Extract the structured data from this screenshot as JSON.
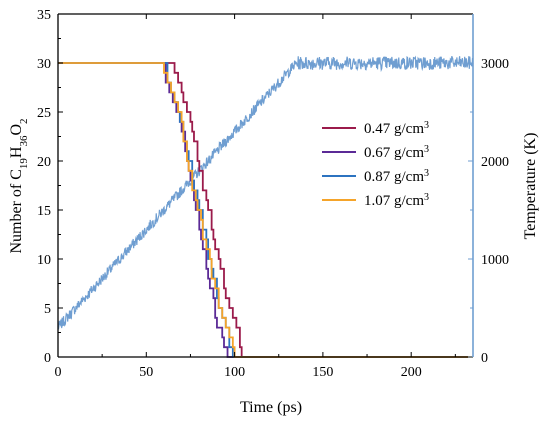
{
  "chart_data": {
    "type": "line",
    "xlabel": "Time (ps)",
    "ylabel_left": {
      "base": "Number of C",
      "s1": "19",
      "m1": "H",
      "s2": "36",
      "m2": "O",
      "s3": "2"
    },
    "ylabel_right": "Temperature (K)",
    "xlim": [
      0,
      235
    ],
    "ylim_left": [
      0,
      35
    ],
    "ylim_right": [
      0,
      3500
    ],
    "x_ticks": [
      0,
      50,
      100,
      150,
      200
    ],
    "y_ticks_left": [
      0,
      5,
      10,
      15,
      20,
      25,
      30,
      35
    ],
    "y_ticks_right": [
      0,
      1000,
      2000,
      3000
    ],
    "right_axis_color": "#6f9ed1",
    "grid": false,
    "legend_position": "center-right",
    "series": [
      {
        "name": "0.47 g/cm",
        "unit_sup": "3",
        "axis": "left",
        "color": "#9b1b4b",
        "x": [
          0,
          65,
          66,
          68,
          70,
          71,
          73,
          75,
          76,
          77,
          79,
          80,
          82,
          84,
          85,
          87,
          88,
          89,
          91,
          92,
          94,
          95,
          97,
          99,
          101,
          103,
          104,
          235
        ],
        "y": [
          30,
          30,
          29,
          28,
          27,
          26,
          25,
          24,
          23,
          22,
          20,
          19,
          17,
          16,
          15,
          13,
          12,
          11,
          10,
          9,
          7,
          6,
          5,
          4,
          3,
          1,
          0,
          0
        ]
      },
      {
        "name": "0.67 g/cm",
        "unit_sup": "3",
        "axis": "left",
        "color": "#5b2a96",
        "x": [
          0,
          57,
          61,
          63,
          65,
          67,
          69,
          70,
          72,
          73,
          74,
          75,
          77,
          78,
          80,
          81,
          82,
          84,
          85,
          86,
          88,
          89,
          90,
          92,
          93,
          94,
          96,
          235
        ],
        "y": [
          30,
          30,
          28,
          27,
          26,
          25,
          24,
          23,
          21,
          20,
          19,
          18,
          16,
          15,
          13,
          12,
          11,
          9,
          8,
          7,
          6,
          4,
          3,
          3,
          2,
          1,
          0,
          0
        ]
      },
      {
        "name": "0.87 g/cm",
        "unit_sup": "3",
        "axis": "left",
        "color": "#2c73c0",
        "x": [
          0,
          59,
          62,
          64,
          66,
          68,
          69,
          71,
          73,
          74,
          76,
          77,
          79,
          80,
          82,
          84,
          85,
          87,
          88,
          90,
          91,
          93,
          95,
          97,
          99,
          235
        ],
        "y": [
          30,
          30,
          28,
          27,
          26,
          25,
          24,
          22,
          21,
          20,
          18,
          17,
          16,
          15,
          13,
          12,
          10,
          9,
          8,
          6,
          5,
          4,
          3,
          1,
          0,
          0
        ]
      },
      {
        "name": "1.07 g/cm",
        "unit_sup": "3",
        "axis": "left",
        "color": "#f5a42a",
        "x": [
          0,
          58,
          60,
          62,
          64,
          66,
          68,
          70,
          71,
          73,
          74,
          76,
          78,
          79,
          81,
          82,
          84,
          86,
          87,
          89,
          91,
          93,
          95,
          97,
          99,
          100,
          235
        ],
        "y": [
          30,
          30,
          29,
          28,
          27,
          26,
          25,
          24,
          22,
          20,
          19,
          17,
          16,
          15,
          14,
          12,
          11,
          10,
          8,
          7,
          5,
          4,
          3,
          2,
          1,
          0,
          0
        ]
      },
      {
        "name": "",
        "axis": "right",
        "color": "#6f9ed1",
        "x": [
          0,
          135,
          235
        ],
        "y": [
          300,
          3000,
          3000
        ]
      }
    ]
  }
}
